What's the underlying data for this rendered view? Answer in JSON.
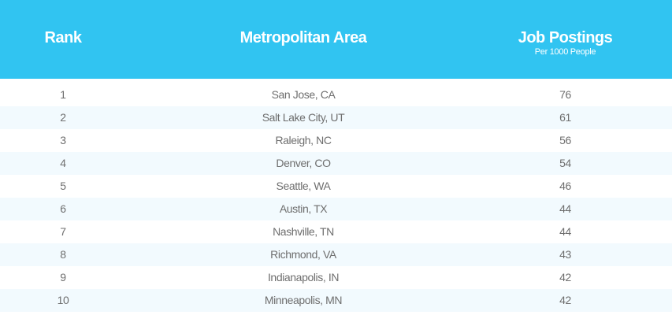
{
  "chart_data": {
    "type": "table",
    "columns": [
      "Rank",
      "Metropolitan Area",
      "Job Postings"
    ],
    "column_subtitle": "Per 1000 People",
    "rows": [
      {
        "rank": "1",
        "area": "San Jose, CA",
        "postings": 76
      },
      {
        "rank": "2",
        "area": "Salt Lake City, UT",
        "postings": 61
      },
      {
        "rank": "3",
        "area": "Raleigh, NC",
        "postings": 56
      },
      {
        "rank": "4",
        "area": "Denver, CO",
        "postings": 54
      },
      {
        "rank": "5",
        "area": "Seattle, WA",
        "postings": 46
      },
      {
        "rank": "6",
        "area": "Austin, TX",
        "postings": 44
      },
      {
        "rank": "7",
        "area": "Nashville, TN",
        "postings": 44
      },
      {
        "rank": "8",
        "area": "Richmond, VA",
        "postings": 43
      },
      {
        "rank": "9",
        "area": "Indianapolis, IN",
        "postings": 42
      },
      {
        "rank": "10",
        "area": "Minneapolis, MN",
        "postings": 42
      }
    ]
  },
  "colors": {
    "header_bg": "#31c4f1",
    "header_text": "#ffffff",
    "row_alt_bg": "#f2fafe",
    "row_text": "#6e6e6e"
  }
}
